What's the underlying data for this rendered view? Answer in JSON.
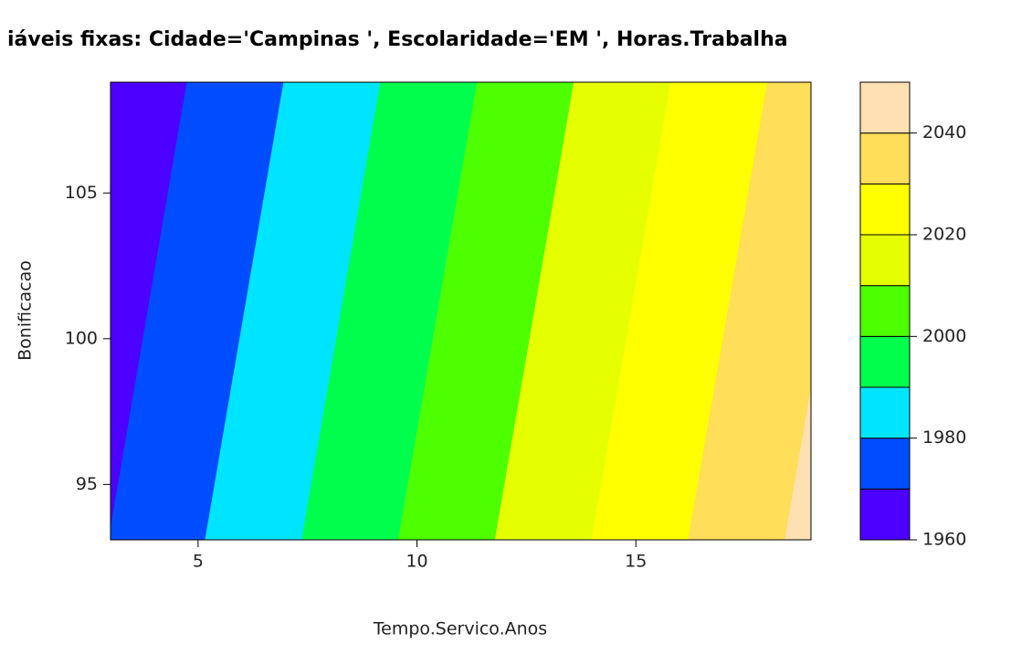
{
  "chart_data": {
    "type": "contour",
    "title": "iáveis fixas: Cidade='Campinas ', Escolaridade='EM ', Horas.Trabalha",
    "x_label": "Tempo.Servico.Anos",
    "y_label": "Bonificacao",
    "x": [
      3,
      19
    ],
    "y": [
      93.1,
      108.8
    ],
    "z": [
      [
        1970.2,
        2042.7
      ],
      [
        1962.1,
        2034.5
      ]
    ],
    "xlim": [
      3,
      19
    ],
    "ylim": [
      93.1,
      108.8
    ],
    "xticks": [
      5,
      10,
      15
    ],
    "yticks": [
      95,
      100,
      105
    ],
    "levels": [
      1960,
      1970,
      1980,
      1990,
      2000,
      2010,
      2020,
      2030,
      2040,
      2050
    ],
    "colors": [
      "#4c00ff",
      "#004cff",
      "#00e5ff",
      "#00ff4d",
      "#4dff00",
      "#e6ff00",
      "#ffff00",
      "#ffde59",
      "#ffe0b3"
    ],
    "colorbar_lim": [
      1960,
      2050
    ],
    "colorbar_ticks": [
      1960,
      1980,
      2000,
      2020,
      2040
    ]
  }
}
